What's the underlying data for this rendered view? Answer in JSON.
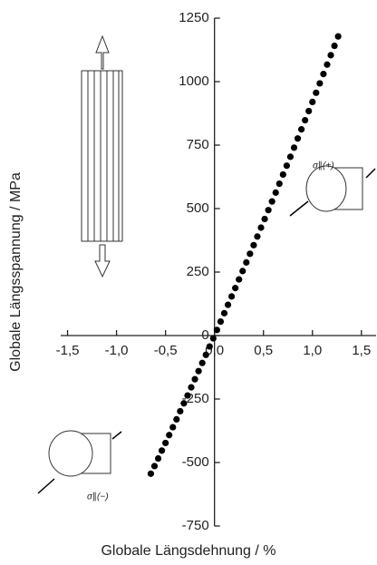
{
  "chart_data": {
    "type": "scatter",
    "xlabel": "Globale Längsdehnung / %",
    "ylabel": "Globale Längsspannung / MPa",
    "annotations": [
      "σ∥(+)",
      "σ∥(−)"
    ],
    "color": "#000000",
    "x": [
      -0.65,
      -0.6125,
      -0.575,
      -0.5375,
      -0.5,
      -0.4625,
      -0.425,
      -0.3875,
      -0.35,
      -0.3125,
      -0.275,
      -0.2375,
      -0.2,
      -0.1625,
      -0.125,
      -0.0875,
      -0.05,
      -0.0125,
      0.025,
      0.0625,
      0.1,
      0.1375,
      0.175,
      0.2125,
      0.25,
      0.2875,
      0.325,
      0.3625,
      0.4,
      0.4375,
      0.475,
      0.5125,
      0.55,
      0.5875,
      0.625,
      0.6625,
      0.7,
      0.7375,
      0.775,
      0.8125,
      0.85,
      0.8875,
      0.925,
      0.9625,
      1.0,
      1.0375,
      1.075,
      1.1125,
      1.15,
      1.1875,
      1.225,
      1.2625
    ],
    "values": [
      -544,
      -514,
      -484,
      -453,
      -423,
      -392,
      -361,
      -330,
      -298,
      -267,
      -236,
      -204,
      -172,
      -140,
      -108,
      -76,
      -43,
      -11,
      22,
      55,
      88,
      121,
      154,
      187,
      221,
      254,
      288,
      322,
      356,
      390,
      425,
      459,
      494,
      528,
      563,
      598,
      634,
      669,
      704,
      740,
      776,
      812,
      848,
      884,
      920,
      956,
      993,
      1030,
      1067,
      1104,
      1141,
      1178
    ],
    "xlim": [
      -1.57,
      1.65
    ],
    "xticks": [
      {
        "value": -1.5,
        "label": "-1,5"
      },
      {
        "value": -1.0,
        "label": "-1,0"
      },
      {
        "value": -0.5,
        "label": "-0,5"
      },
      {
        "value": 0,
        "label": "0,0"
      },
      {
        "value": 0.5,
        "label": "0,5"
      },
      {
        "value": 1.0,
        "label": "1,0"
      },
      {
        "value": 1.5,
        "label": "1,5"
      }
    ],
    "ylim": [
      -750,
      1250
    ],
    "yticks": [
      -750,
      -500,
      -250,
      0,
      250,
      500,
      750,
      1000,
      1250
    ]
  }
}
